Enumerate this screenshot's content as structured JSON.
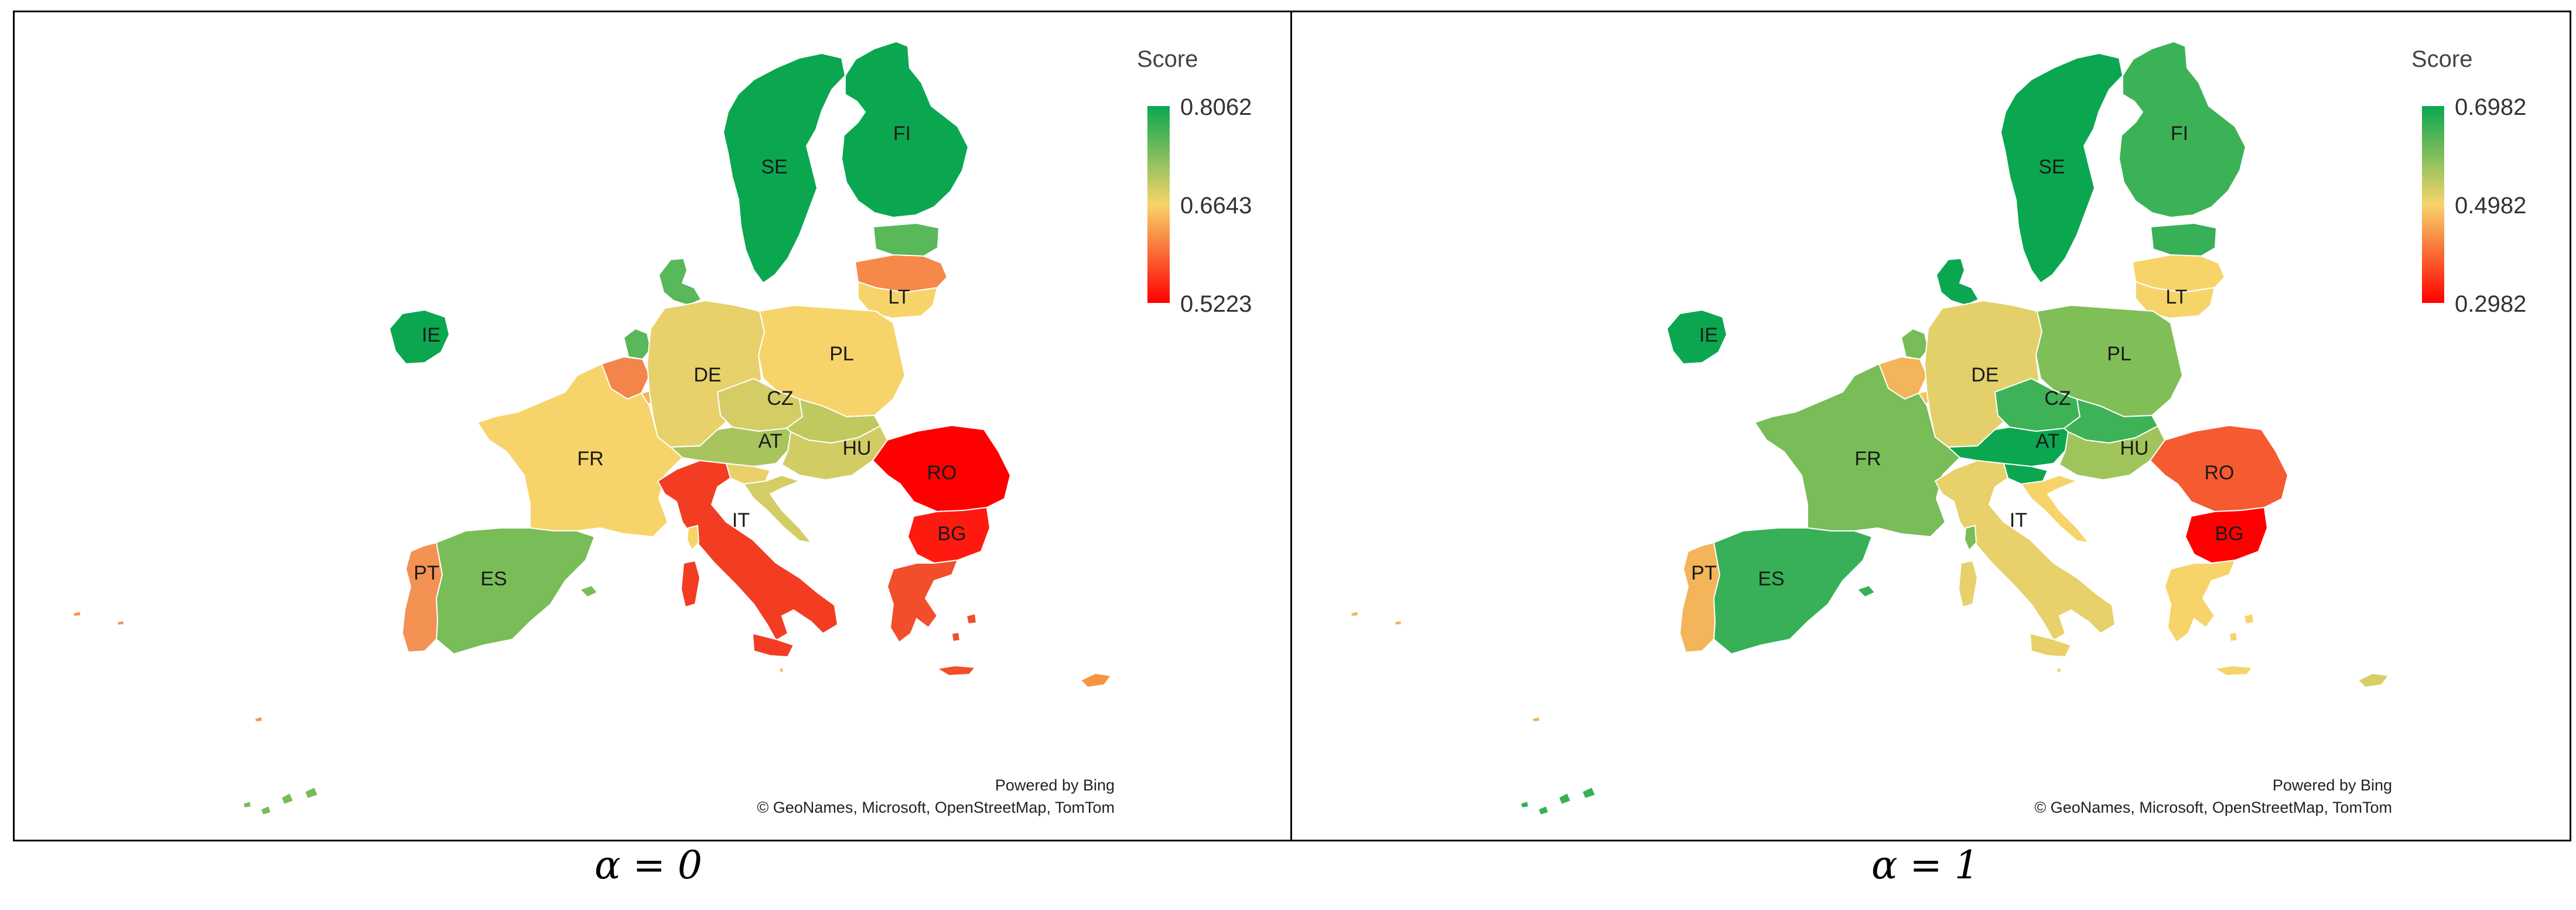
{
  "panels": [
    {
      "caption": "α = 0",
      "legend": {
        "title": "Score",
        "max": "0.8062",
        "mid": "0.6643",
        "min": "0.5223",
        "colors": {
          "high": "#0aa750",
          "mid": "#f6d46a",
          "low": "#ff0000"
        }
      },
      "credit": {
        "line1": "Powered by Bing",
        "line2": "© GeoNames, Microsoft, OpenStreetMap, TomTom"
      },
      "countries": {
        "SE": {
          "label": "SE",
          "color": "#0aa750"
        },
        "FI": {
          "label": "FI",
          "color": "#0aa750"
        },
        "EE": {
          "label": "",
          "color": "#58b85a"
        },
        "LV": {
          "label": "",
          "color": "#f6894a"
        },
        "LT": {
          "label": "LT",
          "color": "#f6d46a"
        },
        "DK": {
          "label": "",
          "color": "#58b85a"
        },
        "IE": {
          "label": "IE",
          "color": "#0aa750"
        },
        "NL": {
          "label": "",
          "color": "#58b85a"
        },
        "BE": {
          "label": "",
          "color": "#f3854a"
        },
        "LU": {
          "label": "",
          "color": "#f3b45a"
        },
        "DE": {
          "label": "DE",
          "color": "#e8d06a"
        },
        "PL": {
          "label": "PL",
          "color": "#f6d46a"
        },
        "CZ": {
          "label": "CZ",
          "color": "#d4cd66"
        },
        "SK": {
          "label": "",
          "color": "#bfc95e"
        },
        "AT": {
          "label": "AT",
          "color": "#a8c45c"
        },
        "HU": {
          "label": "HU",
          "color": "#d1cd64"
        },
        "SI": {
          "label": "",
          "color": "#e9d06a"
        },
        "HR": {
          "label": "",
          "color": "#d4cd66"
        },
        "FR": {
          "label": "FR",
          "color": "#f6d46a"
        },
        "ES": {
          "label": "ES",
          "color": "#78bd58"
        },
        "PT": {
          "label": "PT",
          "color": "#f39252"
        },
        "IT": {
          "label": "IT",
          "color": "#f23d23"
        },
        "RO": {
          "label": "RO",
          "color": "#ff0000"
        },
        "BG": {
          "label": "BG",
          "color": "#ff1a10"
        },
        "GR": {
          "label": "",
          "color": "#f24e2b"
        },
        "CY": {
          "label": "",
          "color": "#f7943f"
        },
        "MT": {
          "label": "",
          "color": "#f6c070"
        }
      }
    },
    {
      "caption": "α = 1",
      "legend": {
        "title": "Score",
        "max": "0.6982",
        "mid": "0.4982",
        "min": "0.2982",
        "colors": {
          "high": "#0aa750",
          "mid": "#f6d46a",
          "low": "#ff0000"
        }
      },
      "credit": {
        "line1": "Powered by Bing",
        "line2": "© GeoNames, Microsoft, OpenStreetMap, TomTom"
      },
      "countries": {
        "SE": {
          "label": "SE",
          "color": "#0aa750"
        },
        "FI": {
          "label": "FI",
          "color": "#3cb257"
        },
        "EE": {
          "label": "",
          "color": "#37b057"
        },
        "LV": {
          "label": "",
          "color": "#f6d46a"
        },
        "LT": {
          "label": "LT",
          "color": "#f6d46a"
        },
        "DK": {
          "label": "",
          "color": "#0aa750"
        },
        "IE": {
          "label": "IE",
          "color": "#0aa750"
        },
        "NL": {
          "label": "",
          "color": "#78bd58"
        },
        "BE": {
          "label": "",
          "color": "#f3b45a"
        },
        "LU": {
          "label": "",
          "color": "#f3c45a"
        },
        "DE": {
          "label": "DE",
          "color": "#e4d06a"
        },
        "PL": {
          "label": "PL",
          "color": "#80bf58"
        },
        "CZ": {
          "label": "CZ",
          "color": "#3eb257"
        },
        "SK": {
          "label": "",
          "color": "#3db257"
        },
        "AT": {
          "label": "AT",
          "color": "#0aa750"
        },
        "HU": {
          "label": "HU",
          "color": "#a0c45c"
        },
        "SI": {
          "label": "",
          "color": "#0aa750"
        },
        "HR": {
          "label": "",
          "color": "#f6d46a"
        },
        "FR": {
          "label": "FR",
          "color": "#78bd58"
        },
        "ES": {
          "label": "ES",
          "color": "#37b057"
        },
        "PT": {
          "label": "PT",
          "color": "#f3b45a"
        },
        "IT": {
          "label": "IT",
          "color": "#e8d06a"
        },
        "RO": {
          "label": "RO",
          "color": "#f65a30"
        },
        "BG": {
          "label": "BG",
          "color": "#ff0000"
        },
        "GR": {
          "label": "",
          "color": "#f6d46a"
        },
        "CY": {
          "label": "",
          "color": "#d9cd66"
        },
        "MT": {
          "label": "",
          "color": "#f6d46a"
        }
      }
    }
  ]
}
